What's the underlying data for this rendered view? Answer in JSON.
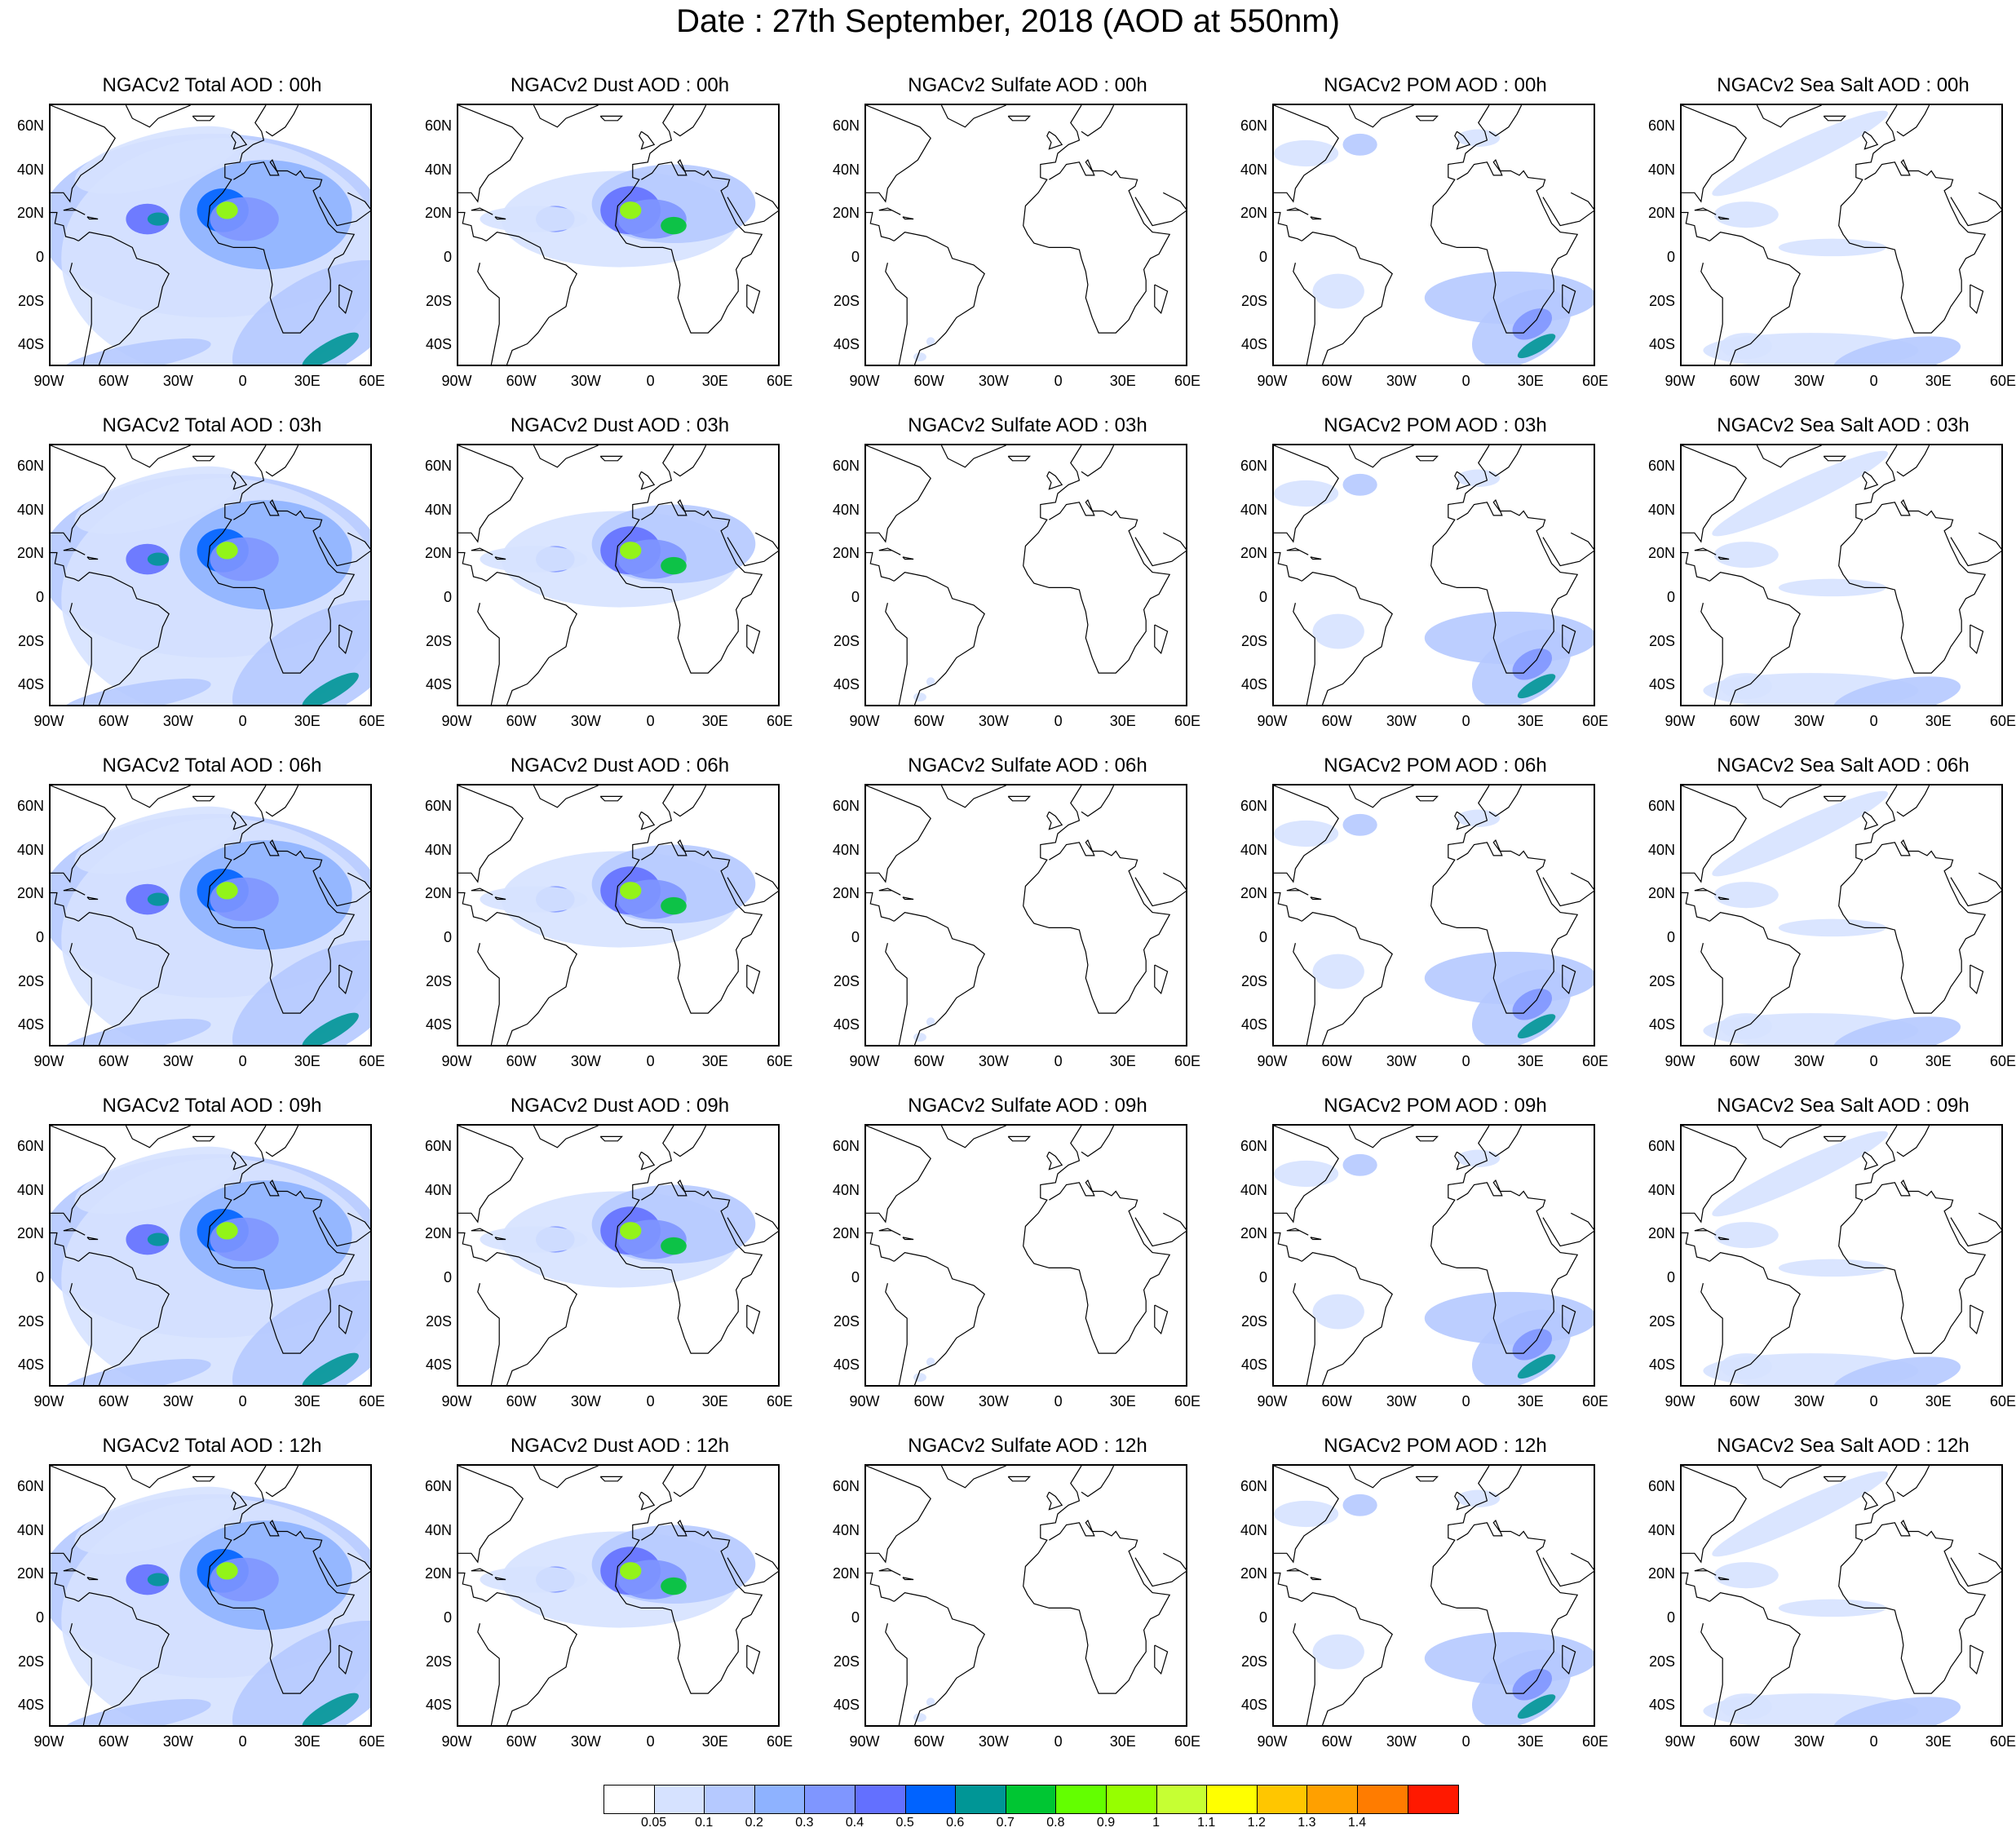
{
  "title": "Date : 27th September, 2018 (AOD at 550nm)",
  "columns": [
    "total",
    "dust",
    "sulfate",
    "pom",
    "seasalt"
  ],
  "rows": [
    "00h",
    "03h",
    "06h",
    "09h",
    "12h"
  ],
  "panel_titles": [
    [
      "NGACv2 Total AOD : 00h",
      "NGACv2 Dust AOD : 00h",
      "NGACv2 Sulfate AOD : 00h",
      "NGACv2 POM AOD : 00h",
      "NGACv2 Sea Salt AOD : 00h"
    ],
    [
      "NGACv2 Total AOD : 03h",
      "NGACv2 Dust AOD : 03h",
      "NGACv2 Sulfate AOD : 03h",
      "NGACv2 POM AOD : 03h",
      "NGACv2 Sea Salt AOD : 03h"
    ],
    [
      "NGACv2 Total AOD : 06h",
      "NGACv2 Dust AOD : 06h",
      "NGACv2 Sulfate AOD : 06h",
      "NGACv2 POM AOD : 06h",
      "NGACv2 Sea Salt AOD : 06h"
    ],
    [
      "NGACv2 Total AOD : 09h",
      "NGACv2 Dust AOD : 09h",
      "NGACv2 Sulfate AOD : 09h",
      "NGACv2 POM AOD : 09h",
      "NGACv2 Sea Salt  AOD : 09h"
    ],
    [
      "NGACv2 Total AOD  : 12h",
      "NGACv2 Dust AOD : 12h",
      "NGACv2 Sulfate AOD : 12h",
      "NGACv2 POM  AOD : 12h",
      "NGACv2 Sea Salt  AOD : 12h"
    ]
  ],
  "lat_labels": [
    "60N",
    "40N",
    "20N",
    "0",
    "20S",
    "40S"
  ],
  "lon_labels": [
    "90W",
    "60W",
    "30W",
    "0",
    "30E",
    "60E"
  ],
  "colorbar": {
    "colors": [
      "#ffffff",
      "#d6e2ff",
      "#b5c9ff",
      "#8eb2ff",
      "#7f96ff",
      "#6370ff",
      "#0063ff",
      "#009696",
      "#00c633",
      "#63ff00",
      "#96ff00",
      "#c6ff33",
      "#ffff00",
      "#ffc600",
      "#ffa000",
      "#ff7c00",
      "#ff1900"
    ],
    "labels": [
      "0.05",
      "0.1",
      "0.2",
      "0.3",
      "0.4",
      "0.5",
      "0.6",
      "0.7",
      "0.8",
      "0.9",
      "1",
      "1.1",
      "1.2",
      "1.3",
      "1.4"
    ]
  },
  "map_extent": {
    "lon": [
      -90,
      60
    ],
    "lat": [
      -50,
      70
    ]
  }
}
